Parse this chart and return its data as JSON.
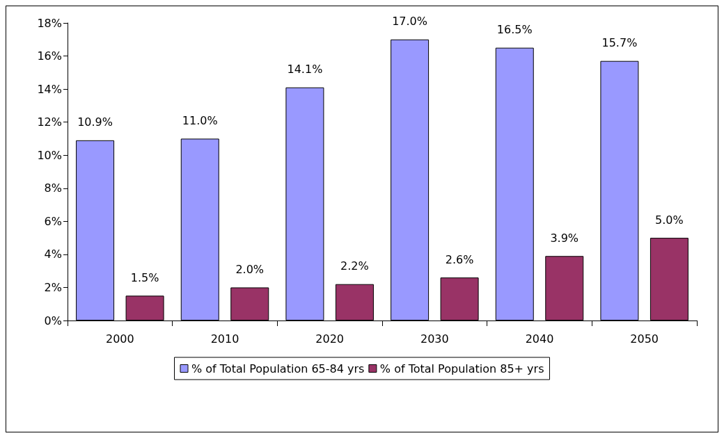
{
  "chart_data": {
    "type": "bar",
    "categories": [
      "2000",
      "2010",
      "2020",
      "2030",
      "2040",
      "2050"
    ],
    "series": [
      {
        "name": "% of Total Population 65-84 yrs",
        "color": "#9999ff",
        "values": [
          10.9,
          11.0,
          14.1,
          17.0,
          16.5,
          15.7
        ],
        "value_labels": [
          "10.9%",
          "11.0%",
          "14.1%",
          "17.0%",
          "16.5%",
          "15.7%"
        ]
      },
      {
        "name": "% of Total Population 85+ yrs",
        "color": "#993366",
        "values": [
          1.5,
          2.0,
          2.2,
          2.6,
          3.9,
          5.0
        ],
        "value_labels": [
          "1.5%",
          "2.0%",
          "2.2%",
          "2.6%",
          "3.9%",
          "5.0%"
        ]
      }
    ],
    "ylim": [
      0,
      18
    ],
    "yticks": [
      {
        "value": 0,
        "label": "0%"
      },
      {
        "value": 2,
        "label": "2%"
      },
      {
        "value": 4,
        "label": "4%"
      },
      {
        "value": 6,
        "label": "6%"
      },
      {
        "value": 8,
        "label": "8%"
      },
      {
        "value": 10,
        "label": "10%"
      },
      {
        "value": 12,
        "label": "12%"
      },
      {
        "value": 14,
        "label": "14%"
      },
      {
        "value": 16,
        "label": "16%"
      },
      {
        "value": 18,
        "label": "18%"
      }
    ],
    "grid": false,
    "legend": "bottom"
  }
}
